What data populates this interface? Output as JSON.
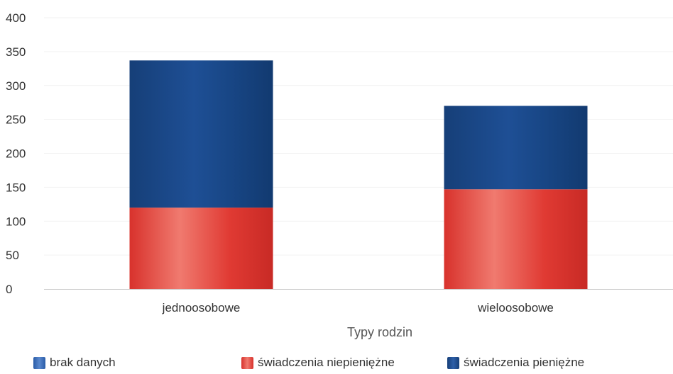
{
  "chart_data": {
    "type": "bar",
    "stacked": true,
    "categories": [
      "jednoosobowe",
      "wieloosobowe"
    ],
    "series": [
      {
        "name": "brak danych",
        "values": [
          0,
          0
        ],
        "color": "#1f4e9c"
      },
      {
        "name": "świadczenia niepieniężne",
        "values": [
          120,
          147
        ],
        "color": "#e03a33"
      },
      {
        "name": "świadczenia pieniężne",
        "values": [
          217,
          123
        ],
        "color": "#1b4c8c"
      }
    ],
    "xlabel": "Typy rodzin",
    "ylabel": "",
    "ylim": [
      0,
      400
    ],
    "yticks": [
      0,
      50,
      100,
      150,
      200,
      250,
      300,
      350,
      400
    ],
    "grid": true,
    "legend_position": "bottom"
  }
}
